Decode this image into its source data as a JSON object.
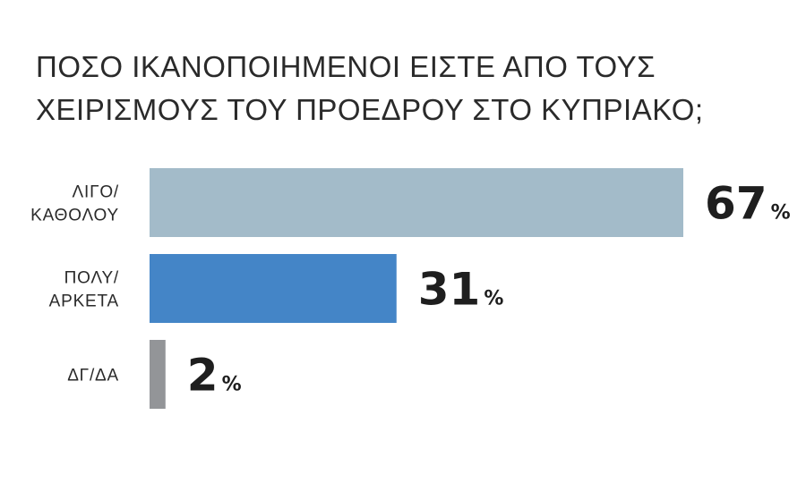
{
  "chart_data": {
    "type": "bar",
    "orientation": "horizontal",
    "title_lines": [
      "ΠΟΣΟ ΙΚΑΝΟΠΟΙΗΜΕΝΟΙ ΕΙΣΤΕ ΑΠΟ ΤΟΥΣ",
      "ΧΕΙΡΙΣΜΟΥΣ ΤΟΥ ΠΡΟΕΔΡΟΥ ΣΤΟ ΚΥΠΡΙΑΚΟ;"
    ],
    "categories": [
      {
        "lines": [
          "ΛΙΓΟ/",
          "ΚΑΘΟΛΟΥ"
        ],
        "value": 67,
        "color": "#a3bbc9"
      },
      {
        "lines": [
          "ΠΟΛΥ/",
          "ΑΡΚΕΤΑ"
        ],
        "value": 31,
        "color": "#4485c7"
      },
      {
        "lines": [
          "ΔΓ/ΔΑ"
        ],
        "value": 2,
        "color": "#939598"
      }
    ],
    "value_suffix": "%",
    "xlim": [
      0,
      100
    ],
    "grid": false,
    "legend": "none"
  }
}
